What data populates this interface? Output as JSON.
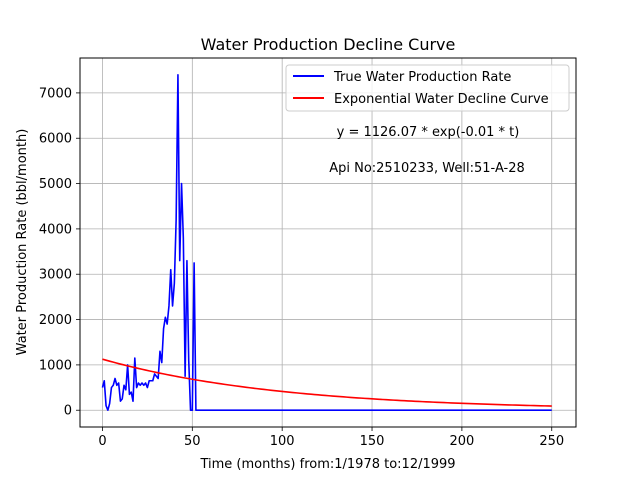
{
  "chart_data": {
    "type": "line",
    "title": "Water Production Decline Curve",
    "xlabel": "Time (months) from:1/1978 to:12/1999",
    "ylabel": "Water Production Rate (bbl/month)",
    "xlim": [
      -12.5,
      263.5
    ],
    "ylim": [
      -370,
      7770
    ],
    "xticks": [
      0,
      50,
      100,
      150,
      200,
      250
    ],
    "yticks": [
      0,
      1000,
      2000,
      3000,
      4000,
      5000,
      6000,
      7000
    ],
    "grid": true,
    "legend_position": "top-right",
    "annotations": [
      "y = 1126.07 * exp(-0.01 * t)",
      "Api No:2510233, Well:51-A-28"
    ],
    "series": [
      {
        "name": "True Water Production Rate",
        "color": "#0000ff",
        "x": [
          0,
          1,
          2,
          3,
          4,
          5,
          6,
          7,
          8,
          9,
          10,
          11,
          12,
          13,
          14,
          15,
          16,
          17,
          18,
          19,
          20,
          21,
          22,
          23,
          24,
          25,
          26,
          27,
          28,
          29,
          30,
          31,
          32,
          33,
          34,
          35,
          36,
          37,
          38,
          39,
          40,
          41,
          42,
          43,
          44,
          45,
          46,
          47,
          48,
          49,
          50,
          51,
          52,
          53,
          54,
          55,
          56,
          57,
          58,
          100,
          150,
          200,
          250
        ],
        "y": [
          500,
          650,
          100,
          0,
          150,
          500,
          550,
          700,
          550,
          600,
          200,
          250,
          550,
          450,
          1000,
          350,
          400,
          200,
          1150,
          500,
          600,
          550,
          600,
          550,
          600,
          500,
          650,
          650,
          650,
          800,
          750,
          700,
          1300,
          1050,
          1800,
          2050,
          1900,
          2300,
          3100,
          2300,
          2800,
          4200,
          7400,
          3300,
          5000,
          3800,
          750,
          3300,
          1100,
          0,
          0,
          3250,
          0,
          0,
          0,
          0,
          0,
          0,
          0,
          0,
          0,
          0,
          0
        ]
      },
      {
        "name": "Exponential Water Decline Curve",
        "color": "#ff0000",
        "function": {
          "a": 1126.07,
          "b": -0.01
        },
        "x_range": [
          0,
          250
        ]
      }
    ]
  }
}
